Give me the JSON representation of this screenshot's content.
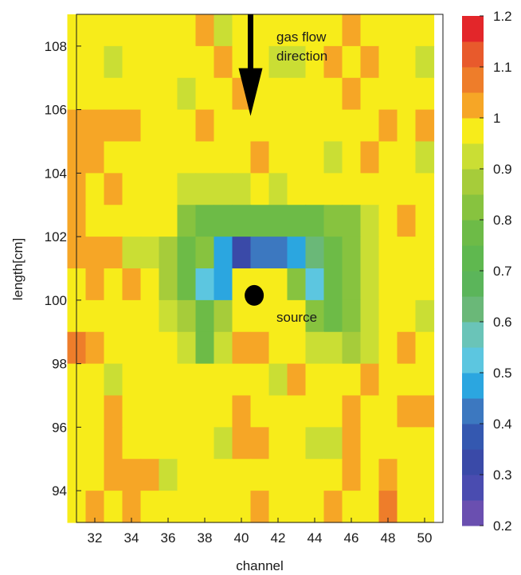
{
  "chart_data": {
    "type": "heatmap",
    "title": "",
    "xlabel": "channel",
    "ylabel": "length[cm]",
    "x_range": [
      31,
      51
    ],
    "y_range": [
      93,
      109
    ],
    "x_ticks": [
      "32",
      "34",
      "36",
      "38",
      "40",
      "42",
      "44",
      "46",
      "48",
      "50"
    ],
    "y_ticks": [
      "94",
      "96",
      "98",
      "100",
      "102",
      "104",
      "106",
      "108"
    ],
    "colorbar": {
      "range": [
        0.2,
        1.2
      ],
      "ticks": [
        "0.2",
        "0.3",
        "0.4",
        "0.5",
        "0.6",
        "0.7",
        "0.8",
        "0.9",
        "1",
        "1.1",
        "1.2"
      ],
      "bands": [
        {
          "from": 0.2,
          "to": 0.25,
          "color": "#6a4fb0"
        },
        {
          "from": 0.25,
          "to": 0.3,
          "color": "#4a4cb0"
        },
        {
          "from": 0.3,
          "to": 0.35,
          "color": "#3a4aa8"
        },
        {
          "from": 0.35,
          "to": 0.4,
          "color": "#3458b0"
        },
        {
          "from": 0.4,
          "to": 0.45,
          "color": "#3c78c0"
        },
        {
          "from": 0.45,
          "to": 0.5,
          "color": "#2ba6e0"
        },
        {
          "from": 0.5,
          "to": 0.55,
          "color": "#5cc6e0"
        },
        {
          "from": 0.55,
          "to": 0.6,
          "color": "#6ac4b8"
        },
        {
          "from": 0.6,
          "to": 0.65,
          "color": "#6ab878"
        },
        {
          "from": 0.65,
          "to": 0.7,
          "color": "#5bb55a"
        },
        {
          "from": 0.7,
          "to": 0.75,
          "color": "#5fb84f"
        },
        {
          "from": 0.75,
          "to": 0.8,
          "color": "#6dbb47"
        },
        {
          "from": 0.8,
          "to": 0.85,
          "color": "#87c33f"
        },
        {
          "from": 0.85,
          "to": 0.9,
          "color": "#a6cc3a"
        },
        {
          "from": 0.9,
          "to": 0.95,
          "color": "#cade34"
        },
        {
          "from": 0.95,
          "to": 1.0,
          "color": "#f7ec1a"
        },
        {
          "from": 1.0,
          "to": 1.05,
          "color": "#f6a626"
        },
        {
          "from": 1.05,
          "to": 1.1,
          "color": "#ee7d2a"
        },
        {
          "from": 1.1,
          "to": 1.15,
          "color": "#e85a2c"
        },
        {
          "from": 1.15,
          "to": 1.2,
          "color": "#e3262a"
        }
      ]
    },
    "x_bins": [
      31,
      32,
      33,
      34,
      35,
      36,
      37,
      38,
      39,
      40,
      41,
      42,
      43,
      44,
      45,
      46,
      47,
      48,
      49,
      50
    ],
    "y_bins": [
      108.5,
      107.5,
      106.5,
      105.5,
      104.5,
      103.5,
      102.5,
      101.5,
      100.5,
      99.5,
      98.5,
      97.5,
      96.5,
      95.5,
      94.5,
      93.5
    ],
    "z": [
      [
        0.97,
        0.97,
        0.97,
        0.97,
        0.97,
        0.97,
        0.97,
        1.02,
        0.93,
        0.97,
        0.97,
        0.97,
        0.97,
        0.97,
        0.97,
        1.02,
        0.97,
        0.97,
        0.97,
        0.97
      ],
      [
        0.97,
        0.97,
        0.93,
        0.97,
        0.97,
        0.97,
        0.97,
        0.97,
        1.02,
        0.97,
        0.97,
        0.93,
        0.93,
        0.97,
        1.02,
        0.97,
        1.02,
        0.97,
        0.97,
        0.93
      ],
      [
        0.97,
        0.97,
        0.97,
        0.97,
        0.97,
        0.97,
        0.93,
        0.97,
        0.97,
        1.02,
        0.97,
        0.97,
        0.97,
        0.97,
        0.97,
        1.02,
        0.97,
        0.97,
        0.97,
        0.97
      ],
      [
        1.02,
        1.02,
        1.02,
        1.02,
        0.97,
        0.97,
        0.97,
        1.02,
        0.97,
        0.97,
        0.97,
        0.97,
        0.97,
        0.97,
        0.97,
        0.97,
        0.97,
        1.02,
        0.97,
        1.02
      ],
      [
        1.02,
        1.02,
        0.97,
        0.97,
        0.97,
        0.97,
        0.97,
        0.97,
        0.97,
        0.97,
        1.02,
        0.97,
        0.97,
        0.97,
        0.93,
        0.97,
        1.02,
        0.97,
        0.97,
        0.93
      ],
      [
        1.02,
        0.97,
        1.02,
        0.97,
        0.97,
        0.97,
        0.93,
        0.93,
        0.93,
        0.93,
        0.97,
        0.93,
        0.97,
        0.97,
        0.97,
        0.97,
        0.97,
        0.97,
        0.97,
        0.97
      ],
      [
        1.02,
        0.97,
        0.97,
        0.97,
        0.97,
        0.97,
        0.83,
        0.77,
        0.77,
        0.77,
        0.77,
        0.77,
        0.77,
        0.77,
        0.83,
        0.83,
        0.93,
        0.97,
        1.02,
        0.97
      ],
      [
        1.02,
        1.02,
        1.02,
        0.93,
        0.93,
        0.88,
        0.77,
        0.83,
        0.47,
        0.33,
        0.42,
        0.42,
        0.47,
        0.62,
        0.77,
        0.83,
        0.93,
        0.97,
        0.97,
        0.97
      ],
      [
        0.97,
        1.02,
        0.97,
        1.02,
        0.97,
        0.88,
        0.77,
        0.52,
        0.47,
        0.97,
        0.97,
        0.97,
        0.83,
        0.52,
        0.77,
        0.83,
        0.93,
        0.97,
        0.97,
        0.97
      ],
      [
        0.97,
        0.97,
        0.97,
        0.97,
        0.97,
        0.93,
        0.88,
        0.77,
        0.88,
        0.97,
        0.97,
        0.97,
        0.97,
        0.83,
        0.77,
        0.83,
        0.93,
        0.97,
        0.97,
        0.93
      ],
      [
        1.07,
        1.02,
        0.97,
        0.97,
        0.97,
        0.97,
        0.93,
        0.77,
        0.93,
        1.02,
        1.02,
        0.97,
        0.97,
        0.93,
        0.93,
        0.88,
        0.93,
        0.97,
        1.02,
        0.97
      ],
      [
        0.97,
        0.97,
        0.93,
        0.97,
        0.97,
        0.97,
        0.97,
        0.97,
        0.97,
        0.97,
        0.97,
        0.93,
        1.02,
        0.97,
        0.97,
        0.97,
        1.02,
        0.97,
        0.97,
        0.97
      ],
      [
        0.97,
        0.97,
        1.02,
        0.97,
        0.97,
        0.97,
        0.97,
        0.97,
        0.97,
        1.02,
        0.97,
        0.97,
        0.97,
        0.97,
        0.97,
        1.02,
        0.97,
        0.97,
        1.02,
        1.02
      ],
      [
        0.97,
        0.97,
        1.02,
        0.97,
        0.97,
        0.97,
        0.97,
        0.97,
        0.93,
        1.02,
        1.02,
        0.97,
        0.97,
        0.93,
        0.93,
        1.02,
        0.97,
        0.97,
        0.97,
        0.97
      ],
      [
        0.97,
        0.97,
        1.02,
        1.02,
        1.02,
        0.93,
        0.97,
        0.97,
        0.97,
        0.97,
        0.97,
        0.97,
        0.97,
        0.97,
        0.97,
        1.02,
        0.97,
        1.02,
        0.97,
        0.97
      ],
      [
        0.97,
        1.02,
        0.97,
        1.02,
        0.97,
        0.97,
        0.97,
        0.97,
        0.97,
        0.97,
        1.02,
        0.97,
        0.97,
        0.97,
        1.02,
        0.97,
        0.97,
        1.07,
        0.97,
        0.97
      ]
    ],
    "annotations": [
      {
        "text_lines": [
          "gas flow",
          "direction"
        ]
      },
      {
        "text_lines": [
          "source"
        ]
      }
    ],
    "arrow": {
      "x": 40.5,
      "y_from": 109,
      "y_to": 105.8
    },
    "source_marker": {
      "x": 40.7,
      "y": 100.15
    }
  }
}
